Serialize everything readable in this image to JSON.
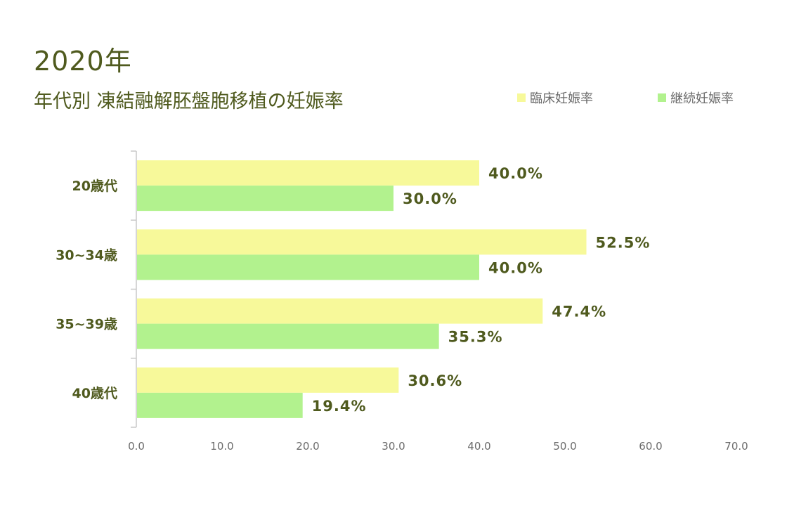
{
  "header": {
    "year": "2020年",
    "subtitle": "年代別 凍結融解胚盤胞移植の妊娠率"
  },
  "chart_data": {
    "type": "bar",
    "orientation": "horizontal",
    "title": "年代別 凍結融解胚盤胞移植の妊娠率",
    "categories": [
      "20歳代",
      "30~34歳",
      "35~39歳",
      "40歳代"
    ],
    "series": [
      {
        "name": "臨床妊娠率",
        "color": "#f7f99a",
        "values": [
          40.0,
          52.5,
          47.4,
          30.6
        ],
        "labels": [
          "40.0%",
          "52.5%",
          "47.4%",
          "30.6%"
        ]
      },
      {
        "name": "継続妊娠率",
        "color": "#b2f28e",
        "values": [
          30.0,
          40.0,
          35.3,
          19.4
        ],
        "labels": [
          "30.0%",
          "40.0%",
          "35.3%",
          "19.4%"
        ]
      }
    ],
    "xlim": [
      0,
      70
    ],
    "xticks": [
      "0.0",
      "10.0",
      "20.0",
      "30.0",
      "40.0",
      "50.0",
      "60.0",
      "70.0"
    ],
    "grid": false,
    "legend": "top-right"
  }
}
